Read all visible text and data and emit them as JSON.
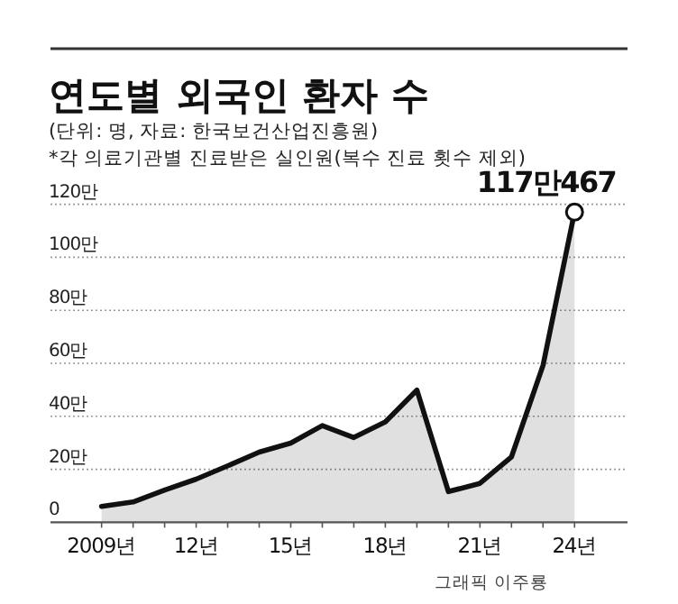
{
  "chart_data": {
    "type": "area",
    "title": "연도별 외국인 환자 수",
    "subtitle": "(단위: 명, 자료: 한국보건산업진흥원)",
    "annotations": [
      "*각 의료기관별 진료받은 실인원(복수 진료 횟수 제외)",
      {
        "text": "117만467",
        "x": "24년",
        "y": 117.0467
      },
      "그래픽 이주룡"
    ],
    "categories": [
      "2009년",
      null,
      null,
      "12년",
      null,
      null,
      "15년",
      null,
      null,
      "18년",
      null,
      null,
      "21년",
      null,
      null,
      "24년"
    ],
    "series": [
      {
        "color": "#111111",
        "values": [
          6,
          7.7,
          12.2,
          16.3,
          21.3,
          26.5,
          29.9,
          36.5,
          32,
          37.9,
          49.9,
          11.6,
          14.7,
          24.7,
          59.2,
          117.0467
        ]
      }
    ],
    "ylim": [
      0,
      120
    ],
    "yticks": [
      0,
      {
        "value": 20,
        "label": "20만"
      },
      {
        "value": 40,
        "label": "40만"
      },
      {
        "value": 60,
        "label": "60만"
      },
      {
        "value": 80,
        "label": "80만"
      },
      {
        "value": 100,
        "label": "100만"
      },
      {
        "value": 120,
        "label": "120만"
      }
    ],
    "grid": "y",
    "line_style": "solid"
  }
}
